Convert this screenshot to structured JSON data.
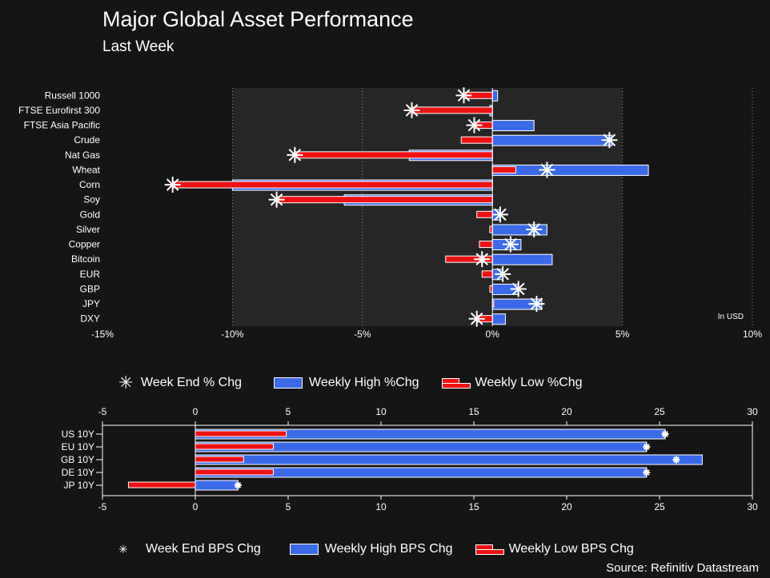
{
  "header": {
    "title": "Major Global Asset Performance",
    "subtitle": "Last Week"
  },
  "footer": {
    "source": "Source: Refinitiv Datastream"
  },
  "colors": {
    "high": "#3a6ae8",
    "low": "#ee1111",
    "marker": "#ffffff",
    "plot_bg": "#262626"
  },
  "chart_data": [
    {
      "type": "bar",
      "orientation": "horizontal",
      "categories": [
        "Russell 1000",
        "FTSE Eurofirst 300",
        "FTSE Asia Pacific",
        "Crude",
        "Nat Gas",
        "Wheat",
        "Corn",
        "Soy",
        "Gold",
        "Silver",
        "Copper",
        "Bitcoin",
        "EUR",
        "GBP",
        "JPY",
        "DXY"
      ],
      "series": [
        {
          "name": "Week End % Chg",
          "marker": "asterisk",
          "values": [
            -1.1,
            -3.1,
            -0.7,
            4.5,
            -7.6,
            2.1,
            -12.3,
            -8.3,
            0.3,
            1.6,
            0.7,
            -0.4,
            0.4,
            1.0,
            1.7,
            -0.6
          ]
        },
        {
          "name": "Weekly High %Chg",
          "values": [
            0.2,
            -0.1,
            1.6,
            4.6,
            -3.2,
            6.0,
            -10.0,
            -5.7,
            0.3,
            2.1,
            1.1,
            2.3,
            0.4,
            1.0,
            1.9,
            0.5
          ]
        },
        {
          "name": "Weekly Low %Chg",
          "values": [
            -1.1,
            -3.1,
            -0.7,
            -1.2,
            -7.6,
            0.9,
            -12.3,
            -8.3,
            -0.6,
            -0.1,
            -0.5,
            -1.8,
            -0.4,
            -0.1,
            0.05,
            -0.6
          ]
        }
      ],
      "xticks": [
        "-15%",
        "-10%",
        "-5%",
        "0%",
        "5%",
        "10%"
      ],
      "xlim": [
        -15,
        10
      ],
      "annotation": "In USD",
      "grid": "vertical dotted",
      "legend_position": "bottom"
    },
    {
      "type": "bar",
      "orientation": "horizontal",
      "categories": [
        "US 10Y",
        "EU 10Y",
        "GB 10Y",
        "DE 10Y",
        "JP 10Y"
      ],
      "series": [
        {
          "name": "Week End BPS Chg",
          "marker": "asterisk",
          "values": [
            25.3,
            24.3,
            25.9,
            24.3,
            2.3
          ]
        },
        {
          "name": "Weekly High BPS Chg",
          "values": [
            25.3,
            24.3,
            27.3,
            24.3,
            2.3
          ]
        },
        {
          "name": "Weekly Low BPS Chg",
          "values": [
            4.9,
            4.2,
            2.6,
            4.2,
            -3.6
          ]
        }
      ],
      "xticks": [
        "-5",
        "0",
        "5",
        "10",
        "15",
        "20",
        "25",
        "30"
      ],
      "xlim": [
        -5,
        30
      ],
      "legend_position": "bottom"
    }
  ]
}
